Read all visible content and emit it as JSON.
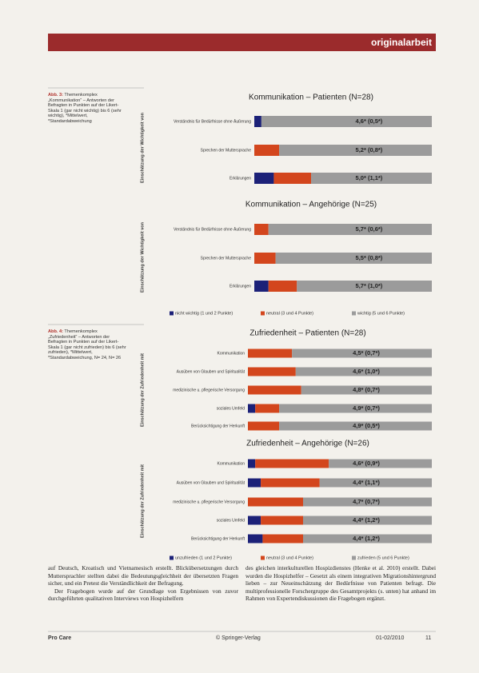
{
  "header": {
    "title": "originalarbeit"
  },
  "captions": [
    {
      "label": "Abb. 3:",
      "text": "Themenkomplex „Kommunikation“ – Antworten der Befragten in Punkten auf der Likert-Skala 1 (gar nicht wichtig) bis 6 (sehr wichtig), *Mittelwert, *Standardabweichung"
    },
    {
      "label": "Abb. 4:",
      "text": "Themenkomplex „Zufriedenheit“ – Antworten der Befragten in Punkten auf der Likert-Skala 1 (gar nicht zufrieden) bis 6 (sehr zufrieden), *Mittelwert, *Standardabweichung, N= 24, N= 26"
    }
  ],
  "chart_data": [
    {
      "type": "bar",
      "orientation": "horizontal",
      "stacked": true,
      "title": "Kommunikation – Patienten (N=28)",
      "y_label": "Einschätzung der Wichtigkeit von",
      "categories": [
        "Verständnis für Bedürfnisse ohne Äußerung",
        "Sprechen der Muttersprache",
        "Erklärungen"
      ],
      "series": [
        {
          "color": "#1c2178",
          "values": [
            4,
            0,
            11
          ]
        },
        {
          "color": "#d3461d",
          "values": [
            0,
            14,
            21
          ]
        },
        {
          "color": "#9b9b9b",
          "values": [
            96,
            86,
            68
          ]
        }
      ],
      "annotations": [
        "4,6* (0,5*)",
        "5,2* (0,8*)",
        "5,0* (1,1*)"
      ],
      "xlim": [
        0,
        100
      ]
    },
    {
      "type": "bar",
      "orientation": "horizontal",
      "stacked": true,
      "title": "Kommunikation – Angehörige (N=25)",
      "y_label": "Einschätzung der Wichtigkeit von",
      "categories": [
        "Verständnis für Bedürfnisse ohne Äußerung",
        "Sprechen der Muttersprache",
        "Erklärungen"
      ],
      "series": [
        {
          "name": "nicht wichtig (1 und 2 Punkte)",
          "color": "#1c2178",
          "values": [
            0,
            0,
            8
          ]
        },
        {
          "name": "neutral (3 und 4 Punkte)",
          "color": "#d3461d",
          "values": [
            8,
            12,
            16
          ]
        },
        {
          "name": "wichtig (5 und 6 Punkte)",
          "color": "#9b9b9b",
          "values": [
            92,
            88,
            76
          ]
        }
      ],
      "annotations": [
        "5,7* (0,6*)",
        "5,5* (0,8*)",
        "5,7* (1,0*)"
      ],
      "xlim": [
        0,
        100
      ]
    },
    {
      "type": "bar",
      "orientation": "horizontal",
      "stacked": true,
      "title": "Zufriedenheit – Patienten (N=28)",
      "y_label": "Einschätzung der Zufriedenheit mit",
      "categories": [
        "Kommunikation",
        "Ausüben von Glauben und Spiritualität",
        "medizinische u. pflegerische Versorgung",
        "soziales Umfeld",
        "Berücksichtigung der Herkunft"
      ],
      "series": [
        {
          "color": "#1c2178",
          "values": [
            0,
            0,
            0,
            4,
            0
          ]
        },
        {
          "color": "#d3461d",
          "values": [
            24,
            26,
            29,
            13,
            17
          ]
        },
        {
          "color": "#9b9b9b",
          "values": [
            76,
            74,
            71,
            83,
            83
          ]
        }
      ],
      "annotations": [
        "4,5* (0,7*)",
        "4,6* (1,0*)",
        "4,8* (0,7*)",
        "4,9* (0,7*)",
        "4,9* (0,5*)"
      ],
      "xlim": [
        0,
        100
      ]
    },
    {
      "type": "bar",
      "orientation": "horizontal",
      "stacked": true,
      "title": "Zufriedenheit – Angehörige (N=26)",
      "y_label": "Einschätzung der Zufriedenheit mit",
      "categories": [
        "Kommunikation",
        "Ausüben von Glauben und Spiritualität",
        "medizinische u. pflegerische Versorgung",
        "soziales Umfeld",
        "Berücksichtigung der Herkunft"
      ],
      "series": [
        {
          "name": "unzufrieden (1 und 2 Punkte)",
          "color": "#1c2178",
          "values": [
            4,
            7,
            0,
            7,
            8
          ]
        },
        {
          "name": "neutral (3 und 4 Punkte)",
          "color": "#d3461d",
          "values": [
            40,
            32,
            30,
            23,
            22
          ]
        },
        {
          "name": "zufrieden (5 und 6 Punkte)",
          "color": "#9b9b9b",
          "values": [
            56,
            61,
            70,
            70,
            70
          ]
        }
      ],
      "annotations": [
        "4,6* (0,9*)",
        "4,4* (1,1*)",
        "4,7* (0,7*)",
        "4,4* (1,2*)",
        "4,4* (1,2*)"
      ],
      "xlim": [
        0,
        100
      ]
    }
  ],
  "body": [
    "auf Deutsch, Kroatisch und Vietnamesisch erstellt. Blickübersetzungen durch Muttersprachler stellten dabei die Bedeutungsgleichheit der übersetzten Fragen sicher, und ein Pretest die Verständlichkeit der Befragung.",
    "Der Fragebogen wurde auf der Grundlage von Ergebnissen von zuvor durchgeführten qualitativen Interviews von Hospizhelfern",
    "des gleichen interkulturellen Hospizdienstes (Henke et al. 2010) erstellt. Dabei wurden die Hospizhelfer – Gesetzt als einem integrativen Migrationshintergrund lieben – zur Neueinschätzung der Bedürfnisse von Patienten befragt. Die multiprofessionelle Forschergruppe des Gesamtprojekts (s. unten) hat anhand im Rahmen von Expertendiskussionen die Fragebogen ergänzt."
  ],
  "footer": {
    "journal": "Pro Care",
    "publisher": "© Springer-Verlag",
    "issue": "01-02/2010",
    "page": "11"
  }
}
